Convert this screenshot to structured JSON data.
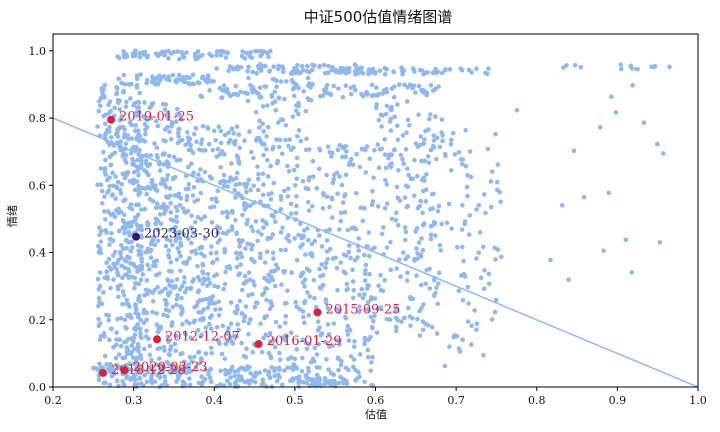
{
  "chart_data": {
    "type": "scatter",
    "title": "中证500估值情绪图谱",
    "xlabel": "估值",
    "ylabel": "情绪",
    "xlim": [
      0.2,
      1.0
    ],
    "ylim": [
      0.0,
      1.05
    ],
    "x_ticks": [
      "0.2",
      "0.3",
      "0.4",
      "0.5",
      "0.6",
      "0.7",
      "0.8",
      "0.9",
      "1.0"
    ],
    "y_ticks": [
      "0.0",
      "0.2",
      "0.4",
      "0.6",
      "0.8",
      "1.0"
    ],
    "grid": false,
    "colors": {
      "points": "#8fb8f0",
      "line": "#8fb8f0",
      "highlight": "#d6213f",
      "current": "#2b1a6e"
    },
    "reference_line": {
      "from": [
        0.2,
        0.8
      ],
      "to": [
        1.0,
        0.0
      ]
    },
    "highlighted_points": [
      {
        "label": "2019-01-25",
        "x": 0.272,
        "y": 0.795,
        "color": "#d6213f"
      },
      {
        "label": "2023-03-30",
        "x": 0.303,
        "y": 0.447,
        "color": "#2b1a6e"
      },
      {
        "label": "2015-09-25",
        "x": 0.528,
        "y": 0.222,
        "color": "#d6213f"
      },
      {
        "label": "2012-12-07",
        "x": 0.329,
        "y": 0.142,
        "color": "#d6213f"
      },
      {
        "label": "2016-01-29",
        "x": 0.455,
        "y": 0.128,
        "color": "#d6213f"
      },
      {
        "label": "2018-12-28",
        "x": 0.262,
        "y": 0.042,
        "color": "#d6213f"
      },
      {
        "label": "2020-03-23",
        "x": 0.289,
        "y": 0.05,
        "color": "#d6213f"
      }
    ],
    "scatter_regions": [
      {
        "x": [
          0.255,
          0.31
        ],
        "y": [
          0.03,
          0.9
        ],
        "n": 380
      },
      {
        "x": [
          0.3,
          0.36
        ],
        "y": [
          0.05,
          0.85
        ],
        "n": 330
      },
      {
        "x": [
          0.36,
          0.44
        ],
        "y": [
          0.02,
          0.78
        ],
        "n": 330
      },
      {
        "x": [
          0.44,
          0.52
        ],
        "y": [
          0.05,
          0.92
        ],
        "n": 300
      },
      {
        "x": [
          0.52,
          0.6
        ],
        "y": [
          0.0,
          0.72
        ],
        "n": 220
      },
      {
        "x": [
          0.6,
          0.68
        ],
        "y": [
          0.15,
          0.9
        ],
        "n": 200
      },
      {
        "x": [
          0.68,
          0.76
        ],
        "y": [
          0.05,
          0.8
        ],
        "n": 90
      },
      {
        "x": [
          0.76,
          0.96
        ],
        "y": [
          0.3,
          0.96
        ],
        "n": 18
      },
      {
        "x": [
          0.25,
          0.58
        ],
        "y": [
          0.0,
          0.06
        ],
        "n": 220
      }
    ],
    "scatter_bands": [
      {
        "x": [
          0.28,
          0.47
        ],
        "y": [
          0.975,
          1.0
        ],
        "n": 80
      },
      {
        "x": [
          0.28,
          0.4
        ],
        "y": [
          0.9,
          0.93
        ],
        "n": 60
      },
      {
        "x": [
          0.38,
          0.68
        ],
        "y": [
          0.86,
          0.9
        ],
        "n": 90
      },
      {
        "x": [
          0.4,
          0.58
        ],
        "y": [
          0.93,
          0.96
        ],
        "n": 70
      },
      {
        "x": [
          0.55,
          0.74
        ],
        "y": [
          0.93,
          0.95
        ],
        "n": 60
      },
      {
        "x": [
          0.8,
          0.98
        ],
        "y": [
          0.945,
          0.96
        ],
        "n": 14
      }
    ]
  }
}
